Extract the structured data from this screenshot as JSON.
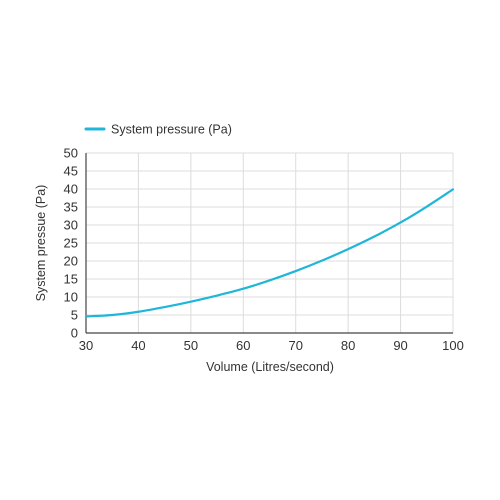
{
  "chart_data": {
    "type": "line",
    "title": "",
    "xlabel": "Volume (Litres/second)",
    "ylabel": "System pressue (Pa)",
    "xlim": [
      30,
      100
    ],
    "ylim": [
      0,
      50
    ],
    "xticks": [
      30,
      40,
      50,
      60,
      70,
      80,
      90,
      100
    ],
    "yticks": [
      0,
      5,
      10,
      15,
      20,
      25,
      30,
      35,
      40,
      45,
      50
    ],
    "grid": true,
    "legend": "top-left",
    "series": [
      {
        "name": "System pressure (Pa)",
        "color": "#1fb6d9",
        "x": [
          30,
          35,
          40,
          45,
          50,
          55,
          60,
          65,
          70,
          75,
          80,
          85,
          90,
          95,
          100
        ],
        "y": [
          4.6,
          5.0,
          5.9,
          7.2,
          8.7,
          10.4,
          12.3,
          14.6,
          17.2,
          20.1,
          23.3,
          26.8,
          30.7,
          35.1,
          39.9
        ]
      }
    ]
  }
}
